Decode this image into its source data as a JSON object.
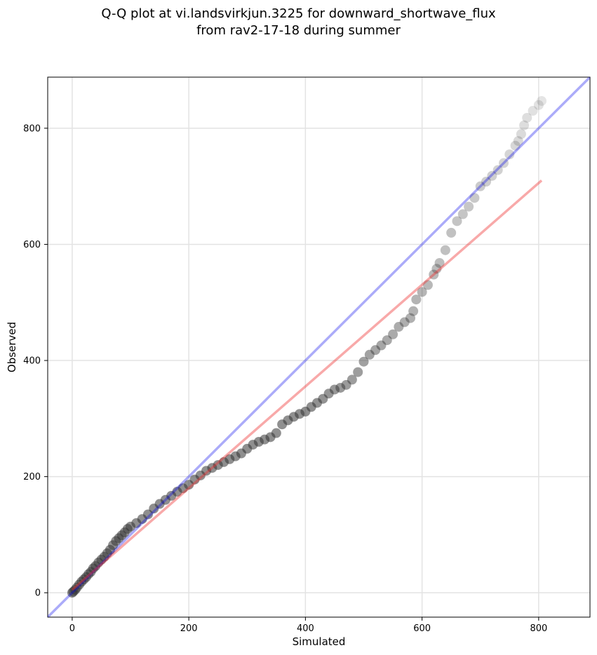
{
  "title_line1": "Q-Q plot at vi.landsvirkjun.3225 for downward_shortwave_flux",
  "title_line2": "from rav2-17-18 during summer",
  "chart_data": {
    "type": "scatter",
    "title": "Q-Q plot at vi.landsvirkjun.3225 for downward_shortwave_flux from rav2-17-18 during summer",
    "xlabel": "Simulated",
    "ylabel": "Observed",
    "xlim": [
      -42,
      888
    ],
    "ylim": [
      -42,
      888
    ],
    "xticks": [
      0,
      200,
      400,
      600,
      800
    ],
    "yticks": [
      0,
      200,
      400,
      600,
      800
    ],
    "grid": true,
    "colors": {
      "points": "#333333",
      "identity_line": "#0000ee",
      "fit_line": "#ee3333"
    },
    "series": [
      {
        "kind": "quantiles",
        "points": [
          [
            0,
            0
          ],
          [
            2,
            2
          ],
          [
            5,
            5
          ],
          [
            8,
            9
          ],
          [
            12,
            14
          ],
          [
            16,
            19
          ],
          [
            20,
            23
          ],
          [
            24,
            27
          ],
          [
            28,
            32
          ],
          [
            32,
            36
          ],
          [
            36,
            42
          ],
          [
            40,
            46
          ],
          [
            45,
            52
          ],
          [
            50,
            57
          ],
          [
            55,
            62
          ],
          [
            60,
            68
          ],
          [
            65,
            74
          ],
          [
            70,
            82
          ],
          [
            75,
            89
          ],
          [
            80,
            94
          ],
          [
            85,
            99
          ],
          [
            90,
            104
          ],
          [
            95,
            110
          ],
          [
            100,
            114
          ],
          [
            110,
            120
          ],
          [
            120,
            127
          ],
          [
            130,
            135
          ],
          [
            140,
            145
          ],
          [
            150,
            153
          ],
          [
            160,
            160
          ],
          [
            170,
            167
          ],
          [
            180,
            174
          ],
          [
            190,
            180
          ],
          [
            200,
            186
          ],
          [
            210,
            195
          ],
          [
            220,
            202
          ],
          [
            230,
            210
          ],
          [
            240,
            215
          ],
          [
            250,
            220
          ],
          [
            260,
            225
          ],
          [
            270,
            230
          ],
          [
            280,
            235
          ],
          [
            290,
            240
          ],
          [
            300,
            248
          ],
          [
            310,
            255
          ],
          [
            320,
            260
          ],
          [
            330,
            264
          ],
          [
            340,
            268
          ],
          [
            350,
            275
          ],
          [
            360,
            290
          ],
          [
            370,
            297
          ],
          [
            380,
            303
          ],
          [
            390,
            308
          ],
          [
            400,
            312
          ],
          [
            410,
            320
          ],
          [
            420,
            327
          ],
          [
            430,
            334
          ],
          [
            440,
            343
          ],
          [
            450,
            350
          ],
          [
            460,
            353
          ],
          [
            470,
            358
          ],
          [
            480,
            367
          ],
          [
            490,
            380
          ],
          [
            500,
            398
          ],
          [
            510,
            410
          ],
          [
            520,
            418
          ],
          [
            530,
            426
          ],
          [
            540,
            435
          ],
          [
            550,
            445
          ],
          [
            560,
            458
          ],
          [
            570,
            466
          ],
          [
            580,
            473
          ],
          [
            585,
            485
          ],
          [
            590,
            505
          ],
          [
            600,
            518
          ],
          [
            610,
            530
          ],
          [
            620,
            548
          ],
          [
            625,
            558
          ],
          [
            630,
            568
          ],
          [
            640,
            590
          ],
          [
            650,
            620
          ],
          [
            660,
            640
          ],
          [
            670,
            652
          ],
          [
            680,
            665
          ],
          [
            690,
            680
          ],
          [
            700,
            700
          ],
          [
            710,
            708
          ],
          [
            720,
            718
          ],
          [
            730,
            728
          ],
          [
            740,
            740
          ],
          [
            750,
            755
          ],
          [
            760,
            770
          ],
          [
            765,
            778
          ],
          [
            770,
            790
          ],
          [
            775,
            805
          ],
          [
            780,
            818
          ],
          [
            790,
            830
          ],
          [
            800,
            840
          ],
          [
            805,
            847
          ]
        ]
      },
      {
        "kind": "identity",
        "line": [
          [
            -42,
            -42
          ],
          [
            888,
            888
          ]
        ]
      },
      {
        "kind": "fit",
        "line": [
          [
            0,
            5
          ],
          [
            805,
            710
          ]
        ]
      }
    ]
  }
}
